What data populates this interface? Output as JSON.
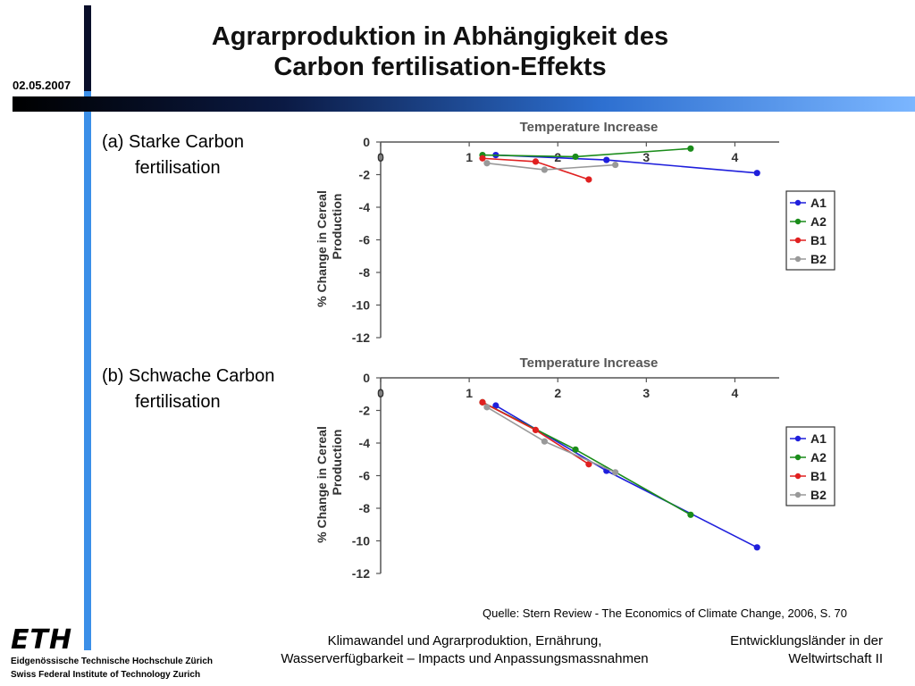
{
  "header": {
    "date": "02.05.2007",
    "title_line1": "Agrarproduktion in Abhängigkeit des",
    "title_line2": "Carbon fertilisation-Effekts"
  },
  "labels": {
    "a_line1": "(a) Starke Carbon",
    "a_line2": "fertilisation",
    "b_line1": "(b) Schwache Carbon",
    "b_line2": "fertilisation"
  },
  "source": "Quelle: Stern Review - The Economics of Climate Change, 2006, S. 70",
  "footer": {
    "mid_line1": "Klimawandel und Agrarproduktion, Ernährung,",
    "mid_line2": "Wasserverfügbarkeit – Impacts und Anpassungsmassnahmen",
    "right_line1": "Entwicklungsländer in der",
    "right_line2": "Weltwirtschaft II"
  },
  "logo": {
    "text": "ETH",
    "sub1": "Eidgenössische Technische Hochschule Zürich",
    "sub2": "Swiss Federal Institute of Technology Zurich"
  },
  "colors": {
    "A1": "#1f1fdc",
    "A2": "#1a8c1a",
    "B1": "#e02020",
    "B2": "#999999"
  },
  "chart_data": [
    {
      "type": "line",
      "title": "Temperature Increase",
      "ylabel_line1": "% Change in Cereal",
      "ylabel_line2": "Production",
      "xlim": [
        0,
        4.5
      ],
      "ylim": [
        -12,
        0
      ],
      "xticks": [
        0,
        1,
        2,
        3,
        4
      ],
      "yticks": [
        0,
        -2,
        -4,
        -6,
        -8,
        -10,
        -12
      ],
      "legend": "right",
      "series": [
        {
          "name": "A1",
          "x": [
            1.3,
            2.55,
            4.25
          ],
          "y": [
            -0.8,
            -1.1,
            -1.9
          ]
        },
        {
          "name": "A2",
          "x": [
            1.15,
            2.2,
            3.5
          ],
          "y": [
            -0.8,
            -0.9,
            -0.4
          ]
        },
        {
          "name": "B1",
          "x": [
            1.15,
            1.75,
            2.35
          ],
          "y": [
            -1.0,
            -1.2,
            -2.3
          ]
        },
        {
          "name": "B2",
          "x": [
            1.2,
            1.85,
            2.65
          ],
          "y": [
            -1.3,
            -1.7,
            -1.4
          ]
        }
      ]
    },
    {
      "type": "line",
      "title": "Temperature Increase",
      "ylabel_line1": "% Change in Cereal",
      "ylabel_line2": "Production",
      "xlim": [
        0,
        4.5
      ],
      "ylim": [
        -12,
        0
      ],
      "xticks": [
        0,
        1,
        2,
        3,
        4
      ],
      "yticks": [
        0,
        -2,
        -4,
        -6,
        -8,
        -10,
        -12
      ],
      "legend": "right",
      "series": [
        {
          "name": "A1",
          "x": [
            1.3,
            2.55,
            4.25
          ],
          "y": [
            -1.7,
            -5.7,
            -10.4
          ]
        },
        {
          "name": "A2",
          "x": [
            1.15,
            2.2,
            3.5
          ],
          "y": [
            -1.5,
            -4.4,
            -8.4
          ]
        },
        {
          "name": "B1",
          "x": [
            1.15,
            1.75,
            2.35
          ],
          "y": [
            -1.5,
            -3.2,
            -5.3
          ]
        },
        {
          "name": "B2",
          "x": [
            1.2,
            1.85,
            2.65
          ],
          "y": [
            -1.8,
            -3.9,
            -5.8
          ]
        }
      ]
    }
  ]
}
